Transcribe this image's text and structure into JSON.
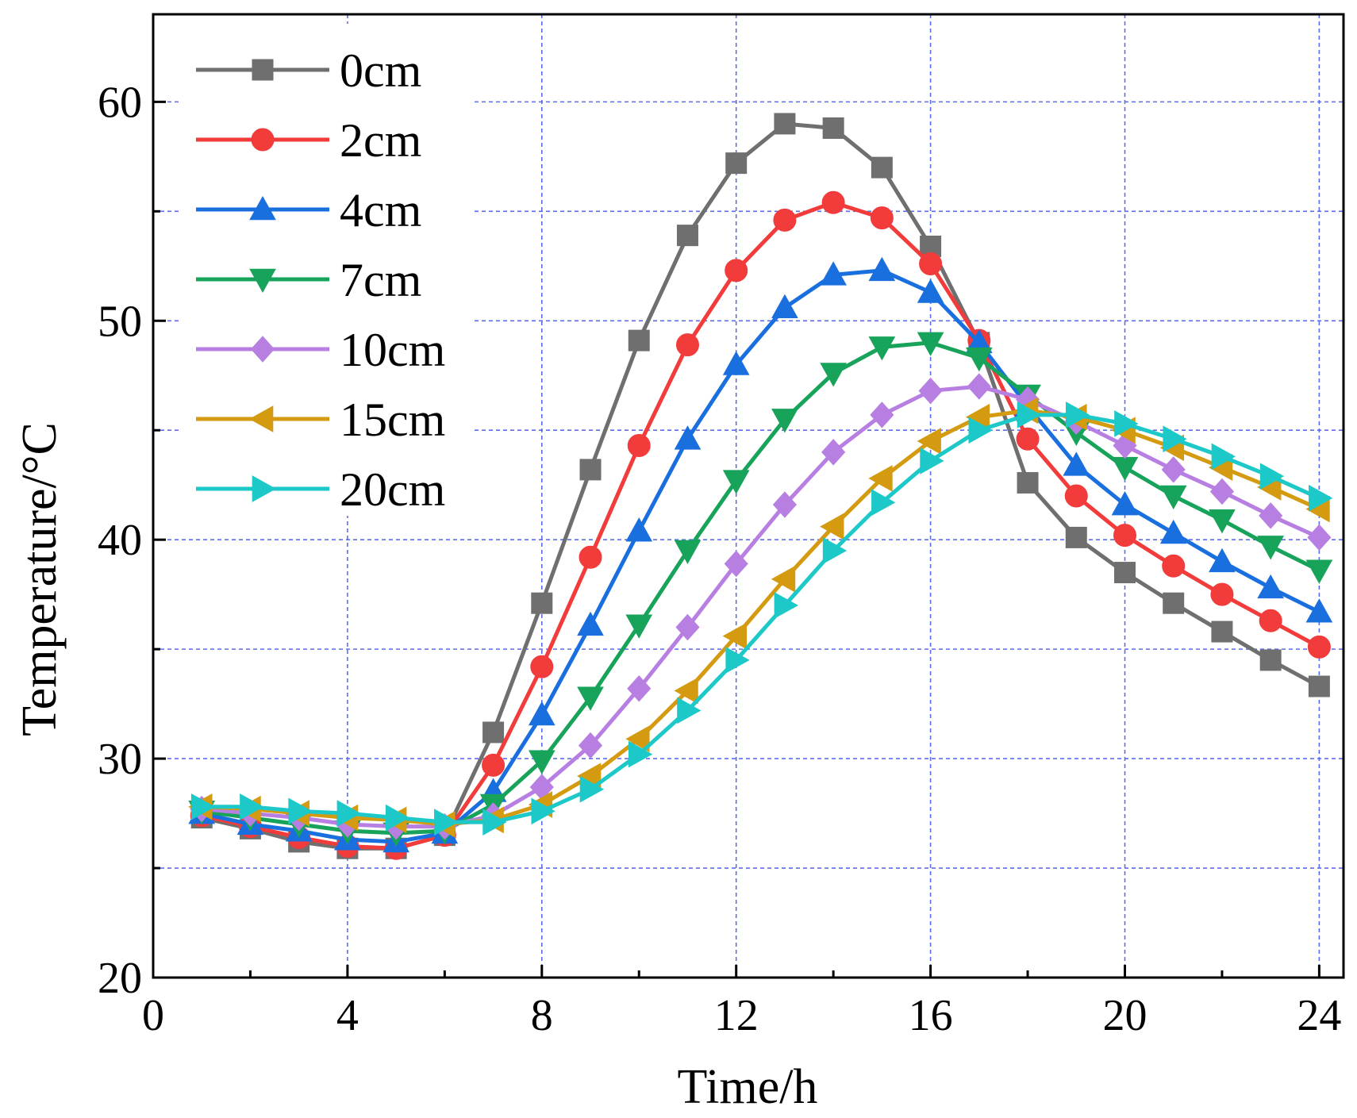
{
  "chart_data": {
    "type": "line",
    "title": "",
    "xlabel": "Time/h",
    "ylabel": "Temperature/°C",
    "xlim": [
      0,
      24.5
    ],
    "ylim": [
      20,
      64
    ],
    "xticks": [
      0,
      4,
      8,
      12,
      16,
      20,
      24
    ],
    "yticks": [
      20,
      30,
      40,
      50,
      60
    ],
    "xtick_labels": [
      "0",
      "4",
      "8",
      "12",
      "16",
      "20",
      "24"
    ],
    "ytick_labels": [
      "20",
      "30",
      "40",
      "50",
      "60"
    ],
    "grid": true,
    "legend_position": "top-left",
    "x": [
      1,
      2,
      3,
      4,
      5,
      6,
      7,
      8,
      9,
      10,
      11,
      12,
      13,
      14,
      15,
      16,
      17,
      18,
      19,
      20,
      21,
      22,
      23,
      24
    ],
    "series": [
      {
        "name": "0cm",
        "color": "#6f6f6f",
        "marker": "square",
        "values": [
          27.3,
          26.8,
          26.2,
          25.9,
          25.9,
          26.5,
          31.2,
          37.1,
          43.2,
          49.1,
          53.9,
          57.2,
          59.0,
          58.8,
          57.0,
          53.4,
          49.0,
          42.6,
          40.1,
          38.5,
          37.1,
          35.8,
          34.5,
          33.3
        ]
      },
      {
        "name": "2cm",
        "color": "#f23b3b",
        "marker": "circle",
        "values": [
          27.4,
          26.9,
          26.4,
          26.0,
          25.9,
          26.5,
          29.7,
          34.2,
          39.2,
          44.3,
          48.9,
          52.3,
          54.6,
          55.4,
          54.7,
          52.6,
          49.1,
          44.6,
          42.0,
          40.2,
          38.8,
          37.5,
          36.3,
          35.1
        ]
      },
      {
        "name": "4cm",
        "color": "#1a6fdf",
        "marker": "triangle-up",
        "values": [
          27.5,
          27.0,
          26.7,
          26.3,
          26.2,
          26.6,
          28.5,
          32.0,
          36.1,
          40.4,
          44.6,
          48.0,
          50.6,
          52.1,
          52.3,
          51.3,
          49.0,
          46.1,
          43.4,
          41.6,
          40.3,
          39.0,
          37.8,
          36.7
        ]
      },
      {
        "name": "7cm",
        "color": "#17a35a",
        "marker": "triangle-down",
        "values": [
          27.6,
          27.3,
          27.0,
          26.7,
          26.6,
          26.7,
          27.9,
          29.9,
          32.8,
          36.1,
          39.5,
          42.7,
          45.5,
          47.6,
          48.8,
          49.0,
          48.3,
          46.6,
          44.9,
          43.3,
          42.0,
          40.9,
          39.7,
          38.6
        ]
      },
      {
        "name": "10cm",
        "color": "#b87fe3",
        "marker": "diamond",
        "values": [
          27.7,
          27.5,
          27.3,
          27.0,
          26.9,
          26.9,
          27.4,
          28.7,
          30.6,
          33.2,
          36.0,
          38.9,
          41.6,
          44.0,
          45.7,
          46.8,
          47.0,
          46.4,
          45.4,
          44.3,
          43.2,
          42.2,
          41.1,
          40.1
        ]
      },
      {
        "name": "15cm",
        "color": "#d49a10",
        "marker": "triangle-left",
        "values": [
          27.8,
          27.7,
          27.5,
          27.3,
          27.2,
          27.0,
          27.2,
          27.9,
          29.2,
          30.9,
          33.1,
          35.6,
          38.2,
          40.6,
          42.8,
          44.5,
          45.6,
          45.9,
          45.6,
          45.0,
          44.2,
          43.3,
          42.4,
          41.4
        ]
      },
      {
        "name": "20cm",
        "color": "#1dc8c8",
        "marker": "triangle-right",
        "values": [
          27.8,
          27.8,
          27.6,
          27.5,
          27.3,
          27.1,
          27.1,
          27.6,
          28.6,
          30.2,
          32.2,
          34.5,
          37.0,
          39.5,
          41.7,
          43.6,
          45.0,
          45.7,
          45.7,
          45.3,
          44.6,
          43.8,
          42.9,
          41.9
        ]
      }
    ]
  }
}
